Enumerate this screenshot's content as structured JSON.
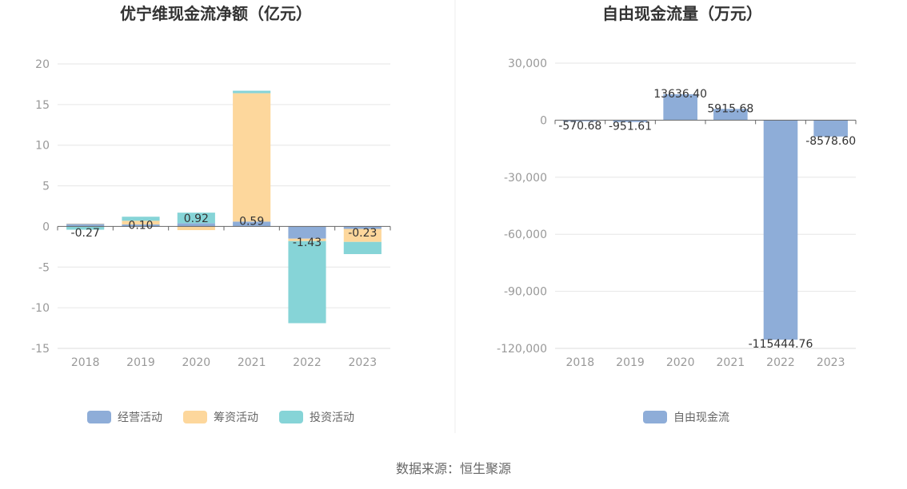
{
  "colors": {
    "operating": "#8eadd8",
    "financing": "#fdd79c",
    "investing": "#86d4d7",
    "grid": "#e6e6e6",
    "axis": "#666666",
    "tick_text": "#999999",
    "divider": "#eeeeee"
  },
  "source": "数据来源：恒生聚源",
  "chart_data": [
    {
      "type": "bar",
      "stacked": true,
      "title": "优宁维现金流净额（亿元）",
      "categories": [
        "2018",
        "2019",
        "2020",
        "2021",
        "2022",
        "2023"
      ],
      "ylim": [
        -15,
        20
      ],
      "yticks": [
        20,
        15,
        10,
        5,
        0,
        -5,
        -10,
        -15
      ],
      "ytick_labels": [
        "20",
        "15",
        "10",
        "5",
        "0",
        "-5",
        "-10",
        "-15"
      ],
      "grid": true,
      "legend_position": "bottom",
      "series": [
        {
          "name": "经营活动",
          "color_key": "operating",
          "values": [
            0.35,
            0.25,
            0.4,
            0.6,
            -1.5,
            -0.3
          ]
        },
        {
          "name": "筹资活动",
          "color_key": "financing",
          "values": [
            0.0,
            0.45,
            -0.45,
            15.8,
            -0.3,
            -1.6
          ]
        },
        {
          "name": "投资活动",
          "color_key": "investing",
          "values": [
            -0.4,
            0.5,
            1.3,
            0.3,
            -10.1,
            -1.5
          ]
        }
      ],
      "data_labels": [
        "-0.27",
        "0.10",
        "0.92",
        "0.59",
        "-1.43",
        "-0.23"
      ],
      "data_label_values": [
        -0.27,
        0.1,
        0.92,
        0.59,
        -1.43,
        -0.23
      ]
    },
    {
      "type": "bar",
      "title": "自由现金流量（万元）",
      "categories": [
        "2018",
        "2019",
        "2020",
        "2021",
        "2022",
        "2023"
      ],
      "ylim": [
        -120000,
        30000
      ],
      "yticks": [
        30000,
        0,
        -30000,
        -60000,
        -90000,
        -120000
      ],
      "ytick_labels": [
        "30,000",
        "0",
        "-30,000",
        "-60,000",
        "-90,000",
        "-120,000"
      ],
      "grid": true,
      "legend_position": "bottom",
      "series": [
        {
          "name": "自由现金流",
          "color_key": "operating",
          "values": [
            -570.68,
            -951.61,
            13636.4,
            5915.68,
            -115444.76,
            -8578.6
          ]
        }
      ],
      "data_labels": [
        "-570.68",
        "-951.61",
        "13636.40",
        "5915.68",
        "-115444.76",
        "-8578.60"
      ]
    }
  ]
}
